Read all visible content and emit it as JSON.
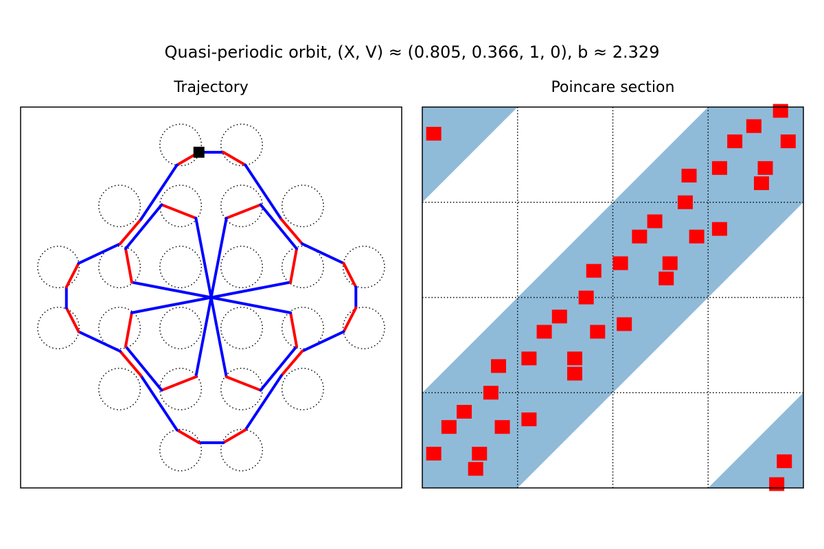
{
  "title": "Quasi-periodic orbit,  (X, V) ≈ (0.805, 0.366, 1, 0), b ≈ 2.329",
  "chart_data": [
    {
      "type": "line",
      "title": "Trajectory",
      "xlim": [
        -3.12,
        3.12
      ],
      "ylim": [
        -3.12,
        3.12
      ],
      "obstacles": {
        "x": [
          -0.5,
          0.5,
          -1.5,
          -0.5,
          0.5,
          1.5,
          -2.5,
          -1.5,
          -0.5,
          0.5,
          1.5,
          2.5,
          -2.5,
          -1.5,
          -0.5,
          0.5,
          1.5,
          2.5,
          -1.5,
          -0.5,
          0.5,
          1.5,
          -0.5,
          0.5
        ],
        "y": [
          2.5,
          2.5,
          1.5,
          1.5,
          1.5,
          1.5,
          0.5,
          0.5,
          0.5,
          0.5,
          0.5,
          0.5,
          -0.5,
          -0.5,
          -0.5,
          -0.5,
          -0.5,
          -0.5,
          -1.5,
          -1.5,
          -1.5,
          -1.5,
          -2.5,
          -2.5
        ],
        "radius": 0.34
      },
      "trajectory": {
        "x": [
          -0.56,
          -0.2,
          0.2,
          0.56,
          1.15,
          1.49,
          2.17,
          2.37,
          2.37,
          2.17,
          1.49,
          1.15,
          0.56,
          0.2,
          -0.2,
          -0.56,
          -1.15,
          -1.49,
          -2.17,
          -2.37,
          -2.37,
          -2.17,
          -1.49,
          -1.15,
          -0.56,
          null,
          -0.81,
          -0.25,
          0.25,
          0.81,
          1.4,
          1.3,
          -1.3,
          -1.4,
          -0.81,
          null,
          0.81,
          0.25,
          -0.25,
          -0.81,
          -1.4,
          -1.3,
          1.3,
          1.4,
          0.81
        ],
        "y": [
          2.17,
          2.38,
          2.38,
          2.17,
          1.28,
          0.88,
          0.56,
          0.17,
          -0.17,
          -0.56,
          -0.88,
          -1.28,
          -2.17,
          -2.38,
          -2.38,
          -2.17,
          -1.28,
          -0.88,
          -0.56,
          -0.17,
          0.17,
          0.56,
          0.88,
          1.28,
          2.17,
          null,
          1.52,
          1.3,
          -1.3,
          -1.52,
          -0.8,
          -0.25,
          0.25,
          0.8,
          1.52,
          null,
          1.52,
          1.3,
          -1.3,
          -1.52,
          -0.8,
          -0.25,
          0.25,
          0.8,
          1.52
        ],
        "segment_colors": [
          "#ff0000",
          "#0000ff",
          "#ff0000",
          "#0000ff",
          "#ff0000",
          "#0000ff",
          "#ff0000",
          "#0000ff",
          "#ff0000",
          "#0000ff",
          "#ff0000",
          "#0000ff",
          "#ff0000",
          "#0000ff",
          "#ff0000",
          "#0000ff",
          "#ff0000",
          "#0000ff",
          "#ff0000",
          "#0000ff",
          "#ff0000",
          "#0000ff",
          "#ff0000",
          "#0000ff",
          null,
          null,
          "#ff0000",
          "#0000ff",
          "#ff0000",
          "#0000ff",
          "#ff0000",
          "#0000ff",
          "#ff0000",
          "#0000ff",
          null,
          null,
          "#ff0000",
          "#0000ff",
          "#ff0000",
          "#0000ff",
          "#ff0000",
          "#0000ff",
          "#ff0000",
          "#0000ff"
        ]
      },
      "start": {
        "x": -0.2,
        "y": 2.38,
        "color": "#000000"
      }
    },
    {
      "type": "scatter",
      "title": "Poincare section",
      "xlim": [
        0,
        1
      ],
      "ylim": [
        0,
        1
      ],
      "xgrid": [
        0.25,
        0.5,
        0.75
      ],
      "ygrid": [
        0.25,
        0.5,
        0.75
      ],
      "band": {
        "half_width": 0.25,
        "color": "#8fbbd9"
      },
      "color": "#ff0000",
      "x": [
        0.03,
        0.94,
        0.87,
        0.82,
        0.96,
        0.78,
        0.9,
        0.7,
        0.89,
        0.69,
        0.61,
        0.57,
        0.72,
        0.78,
        0.52,
        0.65,
        0.45,
        0.64,
        0.43,
        0.53,
        0.36,
        0.32,
        0.46,
        0.2,
        0.28,
        0.4,
        0.4,
        0.18,
        0.11,
        0.28,
        0.07,
        0.21,
        0.03,
        0.15,
        0.14,
        0.95,
        0.93
      ],
      "y": [
        0.93,
        0.99,
        0.95,
        0.91,
        0.91,
        0.84,
        0.84,
        0.82,
        0.8,
        0.75,
        0.7,
        0.66,
        0.66,
        0.68,
        0.59,
        0.59,
        0.57,
        0.55,
        0.5,
        0.43,
        0.45,
        0.41,
        0.41,
        0.32,
        0.34,
        0.34,
        0.3,
        0.25,
        0.2,
        0.18,
        0.16,
        0.16,
        0.09,
        0.09,
        0.05,
        0.07,
        0.01
      ]
    }
  ]
}
